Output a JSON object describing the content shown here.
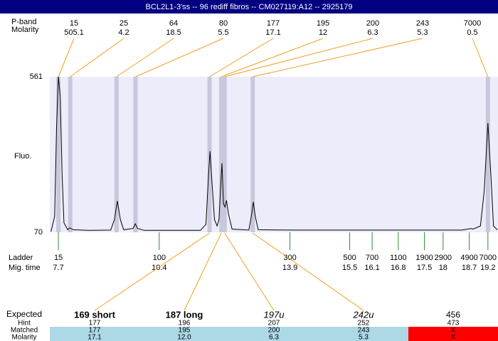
{
  "title": "BCL2L1-3'ss -- 96 rediff fibros -- CM027119:A12 -- 2925179",
  "bands": {
    "label": "P-band",
    "molarity_label": "Molarity",
    "sizes": [
      15,
      25,
      64,
      80,
      177,
      195,
      200,
      243,
      7000
    ],
    "molarity": [
      505.1,
      4.2,
      18.5,
      5.5,
      17.1,
      12,
      6.3,
      5.3,
      0.5
    ]
  },
  "electropherogram": {
    "y_label": "Fluo.",
    "ylim": [
      70,
      561
    ],
    "yticks": [
      561,
      70
    ],
    "xlim": [
      7.47,
      19.47
    ],
    "trace": {
      "x": [
        7.5,
        7.6,
        7.65,
        7.7,
        7.75,
        7.8,
        7.85,
        7.95,
        8.0,
        8.1,
        8.5,
        9.1,
        9.2,
        9.28,
        9.36,
        9.45,
        9.7,
        9.76,
        9.82,
        10.0,
        11.5,
        11.65,
        11.72,
        11.76,
        11.8,
        11.88,
        11.95,
        12.0,
        12.06,
        12.08,
        12.12,
        12.16,
        12.2,
        12.25,
        12.35,
        12.8,
        12.88,
        12.92,
        12.97,
        13.05,
        14.0,
        18.5,
        18.75,
        18.8,
        19.0,
        19.1,
        19.2,
        19.28,
        19.35,
        19.45
      ],
      "y": [
        72,
        120,
        400,
        561,
        500,
        250,
        100,
        78,
        84,
        78,
        76,
        77,
        110,
        169,
        110,
        78,
        82,
        97,
        82,
        76,
        76,
        95,
        250,
        326,
        250,
        110,
        90,
        110,
        250,
        288,
        160,
        150,
        171,
        130,
        80,
        77,
        130,
        166,
        120,
        78,
        77,
        77,
        82,
        80,
        90,
        200,
        415,
        250,
        90,
        78
      ]
    }
  },
  "ladder": {
    "label": "Ladder",
    "time_label": "Mig. time",
    "sizes": [
      15,
      100,
      300,
      500,
      700,
      1100,
      1900,
      2900,
      4900,
      7000
    ],
    "times": [
      7.7,
      10.4,
      13.9,
      15.5,
      16.1,
      16.8,
      17.5,
      18,
      18.7,
      19.2
    ]
  },
  "results": {
    "expected_label": "Expected",
    "hint_label": "Hint",
    "matched_label": "Matched",
    "molarity_label": "Molarity",
    "expected": [
      {
        "text": "169 short",
        "style": "bold"
      },
      {
        "text": "187 long",
        "style": "bold"
      },
      {
        "text": "197u",
        "style": "italic"
      },
      {
        "text": "242u",
        "style": "italic"
      },
      {
        "text": "456",
        "style": "normal"
      }
    ],
    "hint": [
      177,
      196,
      207,
      252,
      473
    ],
    "matched": [
      177,
      195,
      200,
      243,
      "X"
    ],
    "molarity": [
      "17.1",
      "12.0",
      "6.3",
      "5.3",
      "X"
    ]
  }
}
